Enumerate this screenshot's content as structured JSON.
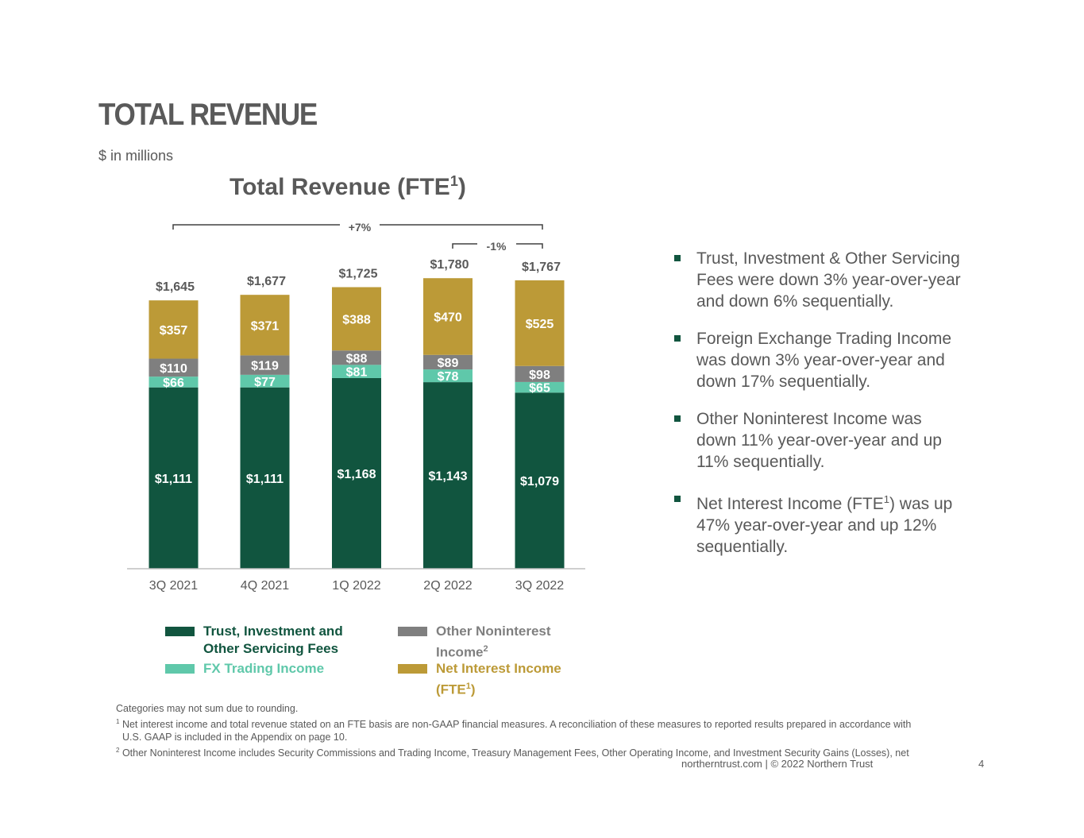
{
  "header": {
    "title": "TOTAL REVENUE",
    "units": "$ in millions"
  },
  "chart_title": {
    "main": "Total Revenue (FTE",
    "sup": "1",
    "close": ")"
  },
  "annotations": {
    "yoy": "+7%",
    "qoq": "-1%"
  },
  "legend": [
    {
      "label_line1": "Trust, Investment and",
      "label_line2": "Other Servicing Fees",
      "sup": "",
      "color": "#11553f"
    },
    {
      "label_line1": "FX Trading Income",
      "label_line2": "",
      "sup": "",
      "color": "#5fc8aa"
    },
    {
      "label_line1": "Other Noninterest",
      "label_line2": "Income",
      "sup": "2",
      "color": "#7f7f7f"
    },
    {
      "label_line1": "Net Interest Income",
      "label_line2": "(FTE",
      "sup": "1",
      "close": ")",
      "color": "#bc9a37"
    }
  ],
  "chart_data": {
    "type": "bar",
    "stacked": true,
    "title": "Total Revenue (FTE1)",
    "categories": [
      "3Q 2021",
      "4Q 2021",
      "1Q 2022",
      "2Q 2022",
      "3Q 2022"
    ],
    "series": [
      {
        "name": "Trust, Investment and Other Servicing Fees",
        "values": [
          1111,
          1111,
          1168,
          1143,
          1079
        ],
        "labels": [
          "$1,111",
          "$1,111",
          "$1,168",
          "$1,143",
          "$1,079"
        ],
        "color": "#11553f"
      },
      {
        "name": "FX Trading Income",
        "values": [
          66,
          77,
          81,
          78,
          65
        ],
        "labels": [
          "$66",
          "$77",
          "$81",
          "$78",
          "$65"
        ],
        "color": "#5fc8aa"
      },
      {
        "name": "Other Noninterest Income",
        "values": [
          110,
          119,
          88,
          89,
          98
        ],
        "labels": [
          "$110",
          "$119",
          "$88",
          "$89",
          "$98"
        ],
        "color": "#7f7f7f"
      },
      {
        "name": "Net Interest Income (FTE1)",
        "values": [
          357,
          371,
          388,
          470,
          525
        ],
        "labels": [
          "$357",
          "$371",
          "$388",
          "$470",
          "$525"
        ],
        "color": "#bc9a37"
      }
    ],
    "totals": [
      1645,
      1677,
      1725,
      1780,
      1767
    ],
    "total_labels": [
      "$1,645",
      "$1,677",
      "$1,725",
      "$1,780",
      "$1,767"
    ],
    "ylim": [
      0,
      1900
    ],
    "grid": false,
    "legend_position": "bottom"
  },
  "bullets": [
    {
      "lines": [
        "Trust, Investment & Other Servicing",
        "Fees were down 3% year-over-year",
        "and down 6% sequentially."
      ]
    },
    {
      "lines": [
        "Foreign Exchange Trading Income",
        "was down 3% year-over-year and",
        "down 17% sequentially."
      ]
    },
    {
      "lines": [
        "Other Noninterest Income was",
        "down 11% year-over-year and up",
        "11% sequentially."
      ]
    },
    {
      "lines": [
        "Net Interest Income (FTE",
        "47% year-over-year and up 12%",
        "sequentially."
      ],
      "sup": "1",
      "line1_tail": ") was up"
    }
  ],
  "footnotes": {
    "rounding": "Categories may not sum due to rounding.",
    "note1_num": "1",
    "note1_line1": "Net interest income and total revenue stated on an FTE basis are non-GAAP financial measures. A reconciliation of these measures to reported results prepared in accordance with",
    "note1_line2": "U.S. GAAP is included in the Appendix on page 10.",
    "note2_num": "2",
    "note2": "Other Noninterest Income includes Security Commissions and Trading Income, Treasury Management Fees, Other Operating Income, and Investment Security Gains (Losses), net"
  },
  "footer": {
    "text": "northerntrust.com  |  © 2022 Northern Trust",
    "page_number": "4"
  }
}
